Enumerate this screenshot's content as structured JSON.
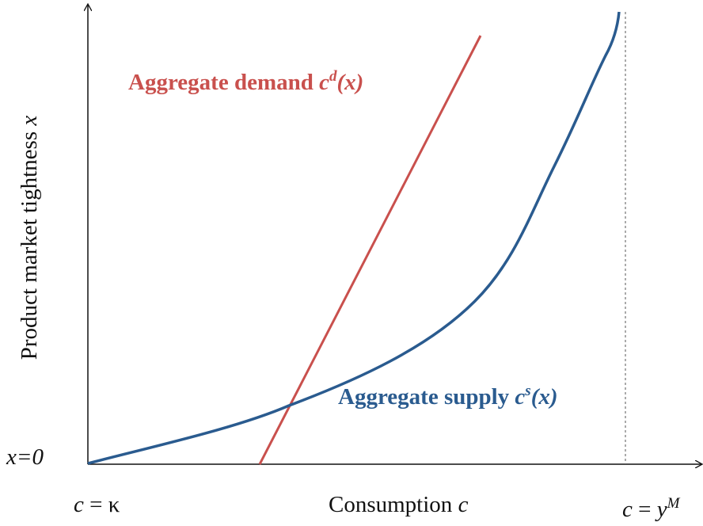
{
  "demand_label": {
    "text": "Aggregate demand",
    "symbol": "c",
    "superscript": "d",
    "argument": "(x)"
  },
  "supply_label": {
    "text": "Aggregate supply",
    "symbol": "c",
    "superscript": "s",
    "argument": "(x)"
  },
  "y_axis_label": {
    "text": "Product market tightness",
    "symbol": "x"
  },
  "origin_label": "x=0",
  "x_axis_label": {
    "text": "Consumption",
    "symbol": "c"
  },
  "x_left_label": {
    "symbol": "c",
    "relation": " = κ"
  },
  "x_right_label": {
    "symbol": "c",
    "relation": " = ",
    "value": "y",
    "superscript": "M"
  }
}
